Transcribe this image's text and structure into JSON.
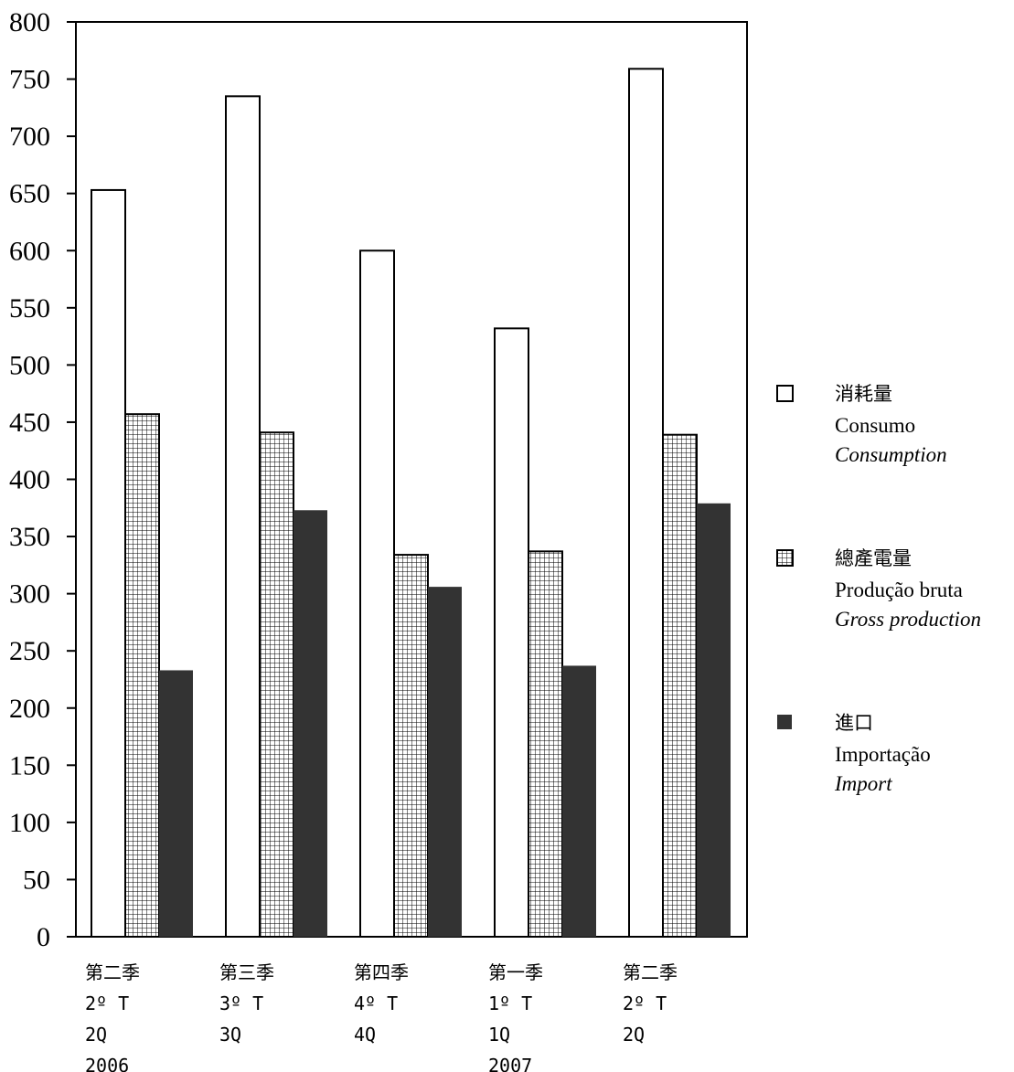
{
  "chart_data": {
    "type": "bar",
    "title": "",
    "xlabel": "",
    "ylabel": "",
    "ylim": [
      0,
      800
    ],
    "yticks": [
      0,
      50,
      100,
      150,
      200,
      250,
      300,
      350,
      400,
      450,
      500,
      550,
      600,
      650,
      700,
      750,
      800
    ],
    "grid": false,
    "legend_position": "right",
    "categories": [
      {
        "lines": [
          "第二季",
          "2º T",
          "2Q",
          "2006"
        ]
      },
      {
        "lines": [
          "第三季",
          "3º T",
          "3Q"
        ]
      },
      {
        "lines": [
          "第四季",
          "4º T",
          "4Q"
        ]
      },
      {
        "lines": [
          "第一季",
          "1º T",
          "1Q",
          "2007"
        ]
      },
      {
        "lines": [
          "第二季",
          "2º T",
          "2Q"
        ]
      }
    ],
    "series": [
      {
        "name": "Consumption",
        "legend_zh": "消耗量",
        "legend_pt": "Consumo",
        "legend_en": "Consumption",
        "pattern": "white",
        "values": [
          653,
          735,
          600,
          532,
          759
        ]
      },
      {
        "name": "Gross production",
        "legend_zh": "總產電量",
        "legend_pt": "Produção bruta",
        "legend_en": "Gross production",
        "pattern": "grid",
        "values": [
          457,
          441,
          334,
          337,
          439
        ]
      },
      {
        "name": "Import",
        "legend_zh": "進口",
        "legend_pt": "Importação",
        "legend_en": "Import",
        "pattern": "dark",
        "values": [
          233,
          373,
          306,
          237,
          379
        ]
      }
    ],
    "colors": {
      "dark_fill": "#333333",
      "outline": "#000000",
      "background": "#ffffff"
    }
  }
}
